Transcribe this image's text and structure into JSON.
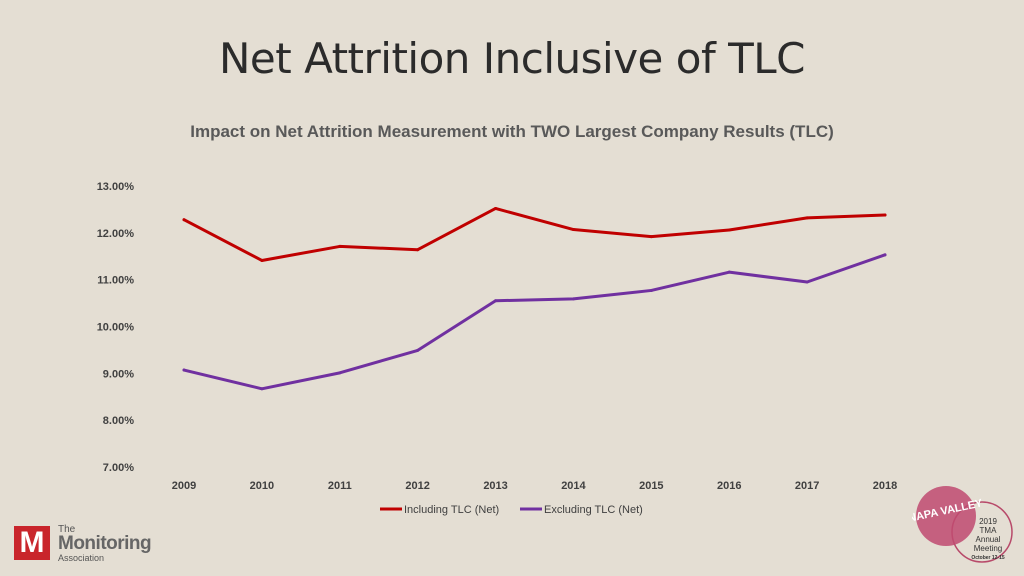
{
  "slide": {
    "title": "Net Attrition Inclusive of TLC"
  },
  "chart_data": {
    "type": "line",
    "title": "Impact on Net  Attrition Measurement with TWO Largest Company Results (TLC)",
    "categories": [
      "2009",
      "2010",
      "2011",
      "2012",
      "2013",
      "2014",
      "2015",
      "2016",
      "2017",
      "2018"
    ],
    "series": [
      {
        "name": "Including TLC (Net)",
        "color": "#c00000",
        "values": [
          12.28,
          11.41,
          11.71,
          11.64,
          12.52,
          12.07,
          11.92,
          12.06,
          12.32,
          12.38
        ]
      },
      {
        "name": "Excluding TLC (Net)",
        "color": "#7030a0",
        "values": [
          9.07,
          8.67,
          9.01,
          9.49,
          10.55,
          10.59,
          10.77,
          11.16,
          10.95,
          11.53
        ]
      }
    ],
    "y_ticks": [
      "13.00%",
      "12.00%",
      "11.00%",
      "10.00%",
      "9.00%",
      "8.00%",
      "7.00%"
    ],
    "ylim": [
      7,
      13
    ],
    "xlabel": "",
    "ylabel": "",
    "grid": false,
    "legend": "bottom"
  },
  "logos": {
    "tma": {
      "line1": "The",
      "line2": "Monitoring",
      "line3": "Association",
      "mark": "M"
    },
    "napa": {
      "badge": "NAPA VALLEY",
      "line1": "2019",
      "line2": "TMA",
      "line3": "Annual",
      "line4": "Meeting",
      "line5": "October 12-15"
    }
  }
}
